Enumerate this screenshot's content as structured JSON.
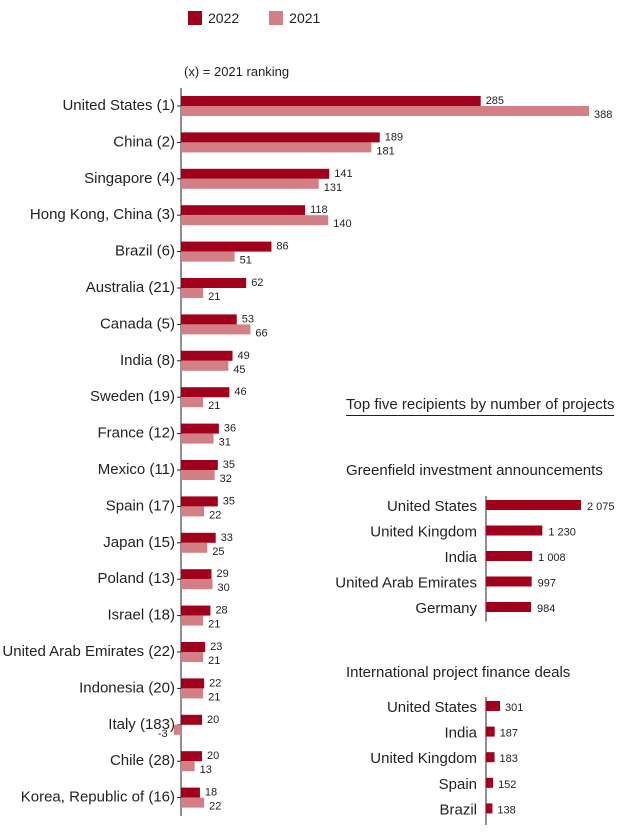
{
  "legend": {
    "series_2022": "2022",
    "series_2021": "2021",
    "color_2022": "#a0001b",
    "color_2021": "#d27f86"
  },
  "note": "(x) = 2021  ranking",
  "chart_data": [
    {
      "type": "bar",
      "orientation": "horizontal",
      "title": "",
      "categories": [
        "United States (1)",
        "China (2)",
        "Singapore (4)",
        "Hong Kong, China (3)",
        "Brazil (6)",
        "Australia (21)",
        "Canada (5)",
        "India (8)",
        "Sweden (19)",
        "France (12)",
        "Mexico (11)",
        "Spain (17)",
        "Japan (15)",
        "Poland (13)",
        "Israel (18)",
        "United Arab Emirates (22)",
        "Indonesia (20)",
        "Italy (183)",
        "Chile (28)",
        "Korea, Republic of (16)"
      ],
      "series": [
        {
          "name": "2022",
          "values": [
            285,
            189,
            141,
            118,
            86,
            62,
            53,
            49,
            46,
            36,
            35,
            35,
            33,
            29,
            28,
            23,
            22,
            20,
            20,
            18
          ]
        },
        {
          "name": "2021",
          "values": [
            388,
            181,
            131,
            140,
            51,
            21,
            66,
            45,
            21,
            31,
            32,
            22,
            25,
            30,
            21,
            21,
            21,
            -3,
            13,
            22
          ]
        }
      ],
      "xlim": [
        -3,
        388
      ],
      "grid": false,
      "legend_position": "top"
    },
    {
      "type": "bar",
      "orientation": "horizontal",
      "title": "Greenfield investment announcements",
      "categories": [
        "United States",
        "United Kingdom",
        "India",
        "United Arab Emirates",
        "Germany"
      ],
      "values": [
        2075,
        1230,
        1008,
        997,
        984
      ],
      "value_labels": [
        "2 075",
        "1 230",
        "1 008",
        "997",
        "984"
      ]
    },
    {
      "type": "bar",
      "orientation": "horizontal",
      "title": "International project finance deals",
      "categories": [
        "United States",
        "India",
        "United Kingdom",
        "Spain",
        "Brazil"
      ],
      "values": [
        301,
        187,
        183,
        152,
        138
      ],
      "value_labels": [
        "301",
        "187",
        "183",
        "152",
        "138"
      ]
    }
  ],
  "inset_heading": "Top five recipients by number of projects"
}
